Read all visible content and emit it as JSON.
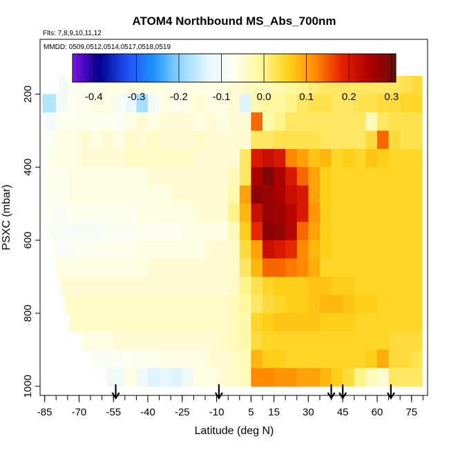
{
  "chart_data": {
    "type": "heatmap",
    "title": "ATOM4 Northbound MS_Abs_700nm",
    "flights_note": "Flts: 7,8,9,10,11,12",
    "dates_note": "MMDD: 0509,0512,0514,0517,0518,0519",
    "xlabel": "Latitude (deg N)",
    "ylabel": "PSXC (mbar)",
    "xlim": [
      -87,
      82
    ],
    "ylim": [
      1025,
      50
    ],
    "y_reversed": true,
    "x_ticks": [
      -85,
      -70,
      -55,
      -40,
      -25,
      -10,
      5,
      15,
      30,
      45,
      60,
      75
    ],
    "x_minor_ticks": [
      -85,
      -80,
      -75,
      -70,
      -65,
      -60,
      -55,
      -50,
      -45,
      -40,
      -35,
      -30,
      -25,
      -20,
      -15,
      -10,
      -5,
      0,
      5,
      10,
      15,
      20,
      25,
      30,
      35,
      40,
      45,
      50,
      55,
      60,
      65,
      70,
      75,
      80
    ],
    "y_ticks": [
      200,
      400,
      600,
      800,
      1000
    ],
    "colorbar": {
      "ticks": [
        -0.4,
        -0.3,
        -0.2,
        -0.1,
        0.0,
        0.1,
        0.2,
        0.3
      ],
      "min": -0.45,
      "max": 0.31,
      "colors": [
        "#7d12e6",
        "#00008c",
        "#1e4ff0",
        "#1e90ff",
        "#8fd8ff",
        "#e6f6ff",
        "#fffff0",
        "#fff799",
        "#ffd21a",
        "#ff8a00",
        "#e62200",
        "#b00000",
        "#6a0a0a"
      ]
    },
    "series": {
      "pressure_levels": [
        175,
        225,
        275,
        325,
        375,
        425,
        475,
        525,
        575,
        625,
        675,
        725,
        775,
        825,
        875,
        925,
        975
      ],
      "level_lat_ranges": [
        [
          -79,
          83
        ],
        [
          -86,
          85
        ],
        [
          -85,
          88
        ],
        [
          -85,
          88
        ],
        [
          -85,
          88
        ],
        [
          -85,
          88
        ],
        [
          -85,
          88
        ],
        [
          -85,
          88
        ],
        [
          -84,
          88
        ],
        [
          -82,
          88
        ],
        [
          -80,
          88
        ],
        [
          -78,
          88
        ],
        [
          -76,
          88
        ],
        [
          -74,
          88
        ],
        [
          -69,
          88
        ],
        [
          -64,
          88
        ],
        [
          -58,
          82
        ]
      ],
      "lat_bins": [
        -87,
        -80,
        -75,
        -70,
        -65,
        -60,
        -55,
        -50,
        -45,
        -40,
        -35,
        -30,
        -25,
        -20,
        -15,
        -10,
        -5,
        0,
        5,
        10,
        15,
        20,
        25,
        30,
        35,
        40,
        45,
        50,
        55,
        60,
        65,
        70,
        75,
        82,
        88
      ],
      "values": [
        [
          -0.14,
          -0.1,
          -0.08,
          -0.07,
          -0.07,
          -0.06,
          -0.06,
          -0.06,
          -0.06,
          -0.06,
          -0.06,
          -0.07,
          -0.06,
          -0.06,
          -0.06,
          -0.06,
          -0.05,
          -0.04,
          -0.03,
          -0.03,
          -0.02,
          -0.01,
          0.0,
          0.01,
          0.02,
          0.02,
          0.02,
          0.02,
          0.02,
          0.02,
          0.02,
          0.03,
          0.04,
          0.04
        ],
        [
          -0.17,
          -0.1,
          -0.07,
          -0.07,
          -0.06,
          -0.06,
          -0.09,
          -0.12,
          -0.18,
          -0.1,
          -0.06,
          -0.07,
          -0.06,
          -0.05,
          -0.06,
          -0.06,
          -0.05,
          -0.14,
          -0.02,
          -0.01,
          -0.01,
          0.0,
          0.02,
          0.03,
          0.03,
          0.02,
          0.02,
          0.03,
          0.03,
          0.04,
          0.04,
          0.05,
          0.05,
          0.05
        ],
        [
          -0.1,
          -0.07,
          -0.07,
          -0.07,
          -0.07,
          -0.07,
          -0.08,
          -0.06,
          -0.05,
          -0.06,
          -0.05,
          -0.05,
          -0.05,
          -0.06,
          -0.05,
          -0.06,
          -0.05,
          -0.05,
          0.14,
          -0.02,
          0.0,
          0.02,
          0.02,
          0.02,
          0.02,
          0.02,
          0.02,
          0.02,
          -0.03,
          0.02,
          0.03,
          0.03,
          0.03,
          0.05
        ],
        [
          -0.08,
          -0.06,
          -0.06,
          -0.05,
          -0.06,
          -0.05,
          -0.06,
          -0.04,
          -0.05,
          -0.04,
          -0.05,
          -0.05,
          -0.05,
          -0.04,
          -0.05,
          -0.05,
          -0.05,
          -0.05,
          0.02,
          0.02,
          0.03,
          0.03,
          0.03,
          0.03,
          0.02,
          0.02,
          0.02,
          0.02,
          0.04,
          0.14,
          0.04,
          0.03,
          0.03,
          0.04
        ],
        [
          -0.07,
          -0.06,
          -0.06,
          -0.05,
          -0.05,
          -0.05,
          -0.05,
          -0.04,
          -0.04,
          -0.04,
          -0.04,
          -0.04,
          -0.04,
          -0.05,
          -0.05,
          -0.05,
          -0.05,
          0.02,
          0.2,
          0.22,
          0.2,
          0.12,
          0.1,
          0.07,
          0.08,
          0.05,
          0.06,
          0.05,
          0.07,
          0.06,
          0.05,
          0.05,
          0.05,
          0.05
        ],
        [
          -0.07,
          -0.07,
          -0.06,
          -0.06,
          -0.06,
          -0.06,
          -0.06,
          -0.06,
          -0.06,
          -0.05,
          -0.05,
          -0.05,
          -0.05,
          -0.05,
          -0.05,
          -0.05,
          -0.03,
          0.02,
          0.25,
          0.29,
          0.25,
          0.2,
          0.14,
          0.1,
          0.06,
          0.05,
          0.05,
          0.05,
          0.05,
          0.05,
          0.05,
          0.05,
          0.05,
          0.05
        ],
        [
          -0.07,
          -0.07,
          -0.06,
          -0.06,
          -0.06,
          -0.06,
          -0.06,
          -0.06,
          -0.06,
          -0.06,
          -0.06,
          -0.05,
          -0.05,
          -0.05,
          -0.05,
          -0.05,
          -0.02,
          0.1,
          0.28,
          0.27,
          0.25,
          0.22,
          0.2,
          0.1,
          0.06,
          0.05,
          0.05,
          0.05,
          0.05,
          0.05,
          0.05,
          0.05,
          0.05,
          0.05
        ],
        [
          -0.08,
          -0.08,
          -0.07,
          -0.07,
          -0.07,
          -0.07,
          -0.07,
          -0.07,
          -0.06,
          -0.06,
          -0.06,
          -0.06,
          -0.06,
          -0.05,
          -0.05,
          -0.05,
          0.0,
          0.08,
          0.22,
          0.27,
          0.26,
          0.24,
          0.2,
          0.11,
          0.06,
          0.05,
          0.05,
          0.05,
          0.05,
          0.05,
          0.05,
          0.05,
          0.05,
          0.05
        ],
        [
          -0.09,
          -0.09,
          -0.09,
          -0.09,
          -0.09,
          -0.08,
          -0.08,
          -0.08,
          -0.07,
          -0.07,
          -0.07,
          -0.07,
          -0.06,
          -0.06,
          -0.06,
          -0.06,
          -0.03,
          0.06,
          0.18,
          0.28,
          0.27,
          0.24,
          0.14,
          0.1,
          0.06,
          0.05,
          0.05,
          0.05,
          0.05,
          0.05,
          0.05,
          0.05,
          0.05,
          0.05
        ],
        [
          -0.08,
          -0.08,
          -0.08,
          -0.07,
          -0.07,
          -0.07,
          -0.07,
          -0.07,
          -0.06,
          -0.06,
          -0.06,
          -0.06,
          -0.06,
          -0.06,
          -0.05,
          -0.05,
          -0.04,
          0.04,
          0.1,
          0.22,
          0.2,
          0.18,
          0.12,
          0.08,
          0.06,
          0.05,
          0.05,
          0.05,
          0.05,
          0.05,
          0.05,
          0.05,
          0.05,
          0.05
        ],
        [
          -0.06,
          -0.06,
          -0.06,
          -0.06,
          -0.06,
          -0.06,
          -0.06,
          -0.06,
          -0.06,
          -0.05,
          -0.05,
          -0.05,
          -0.05,
          -0.05,
          -0.05,
          -0.05,
          -0.04,
          0.02,
          0.08,
          0.14,
          0.14,
          0.13,
          0.12,
          0.09,
          0.05,
          0.05,
          0.05,
          0.05,
          0.05,
          0.05,
          0.05,
          0.05,
          0.05,
          0.05
        ],
        [
          -0.05,
          -0.05,
          -0.05,
          -0.05,
          -0.05,
          -0.05,
          -0.05,
          -0.05,
          -0.05,
          -0.05,
          -0.05,
          -0.05,
          -0.05,
          -0.05,
          -0.05,
          -0.05,
          -0.04,
          0.0,
          0.03,
          0.05,
          0.06,
          0.06,
          0.06,
          0.07,
          0.07,
          0.06,
          0.06,
          0.05,
          0.05,
          0.05,
          0.05,
          0.05,
          0.05,
          0.05
        ],
        [
          -0.04,
          -0.04,
          -0.04,
          -0.04,
          -0.04,
          -0.04,
          -0.04,
          -0.04,
          -0.04,
          -0.04,
          -0.04,
          -0.04,
          -0.04,
          -0.04,
          -0.04,
          -0.04,
          -0.03,
          -0.01,
          0.02,
          0.04,
          0.05,
          0.06,
          0.06,
          0.07,
          0.08,
          0.08,
          0.07,
          0.06,
          0.06,
          0.05,
          0.05,
          0.05,
          0.05,
          0.05
        ],
        [
          -0.04,
          -0.04,
          -0.04,
          -0.04,
          -0.04,
          -0.04,
          -0.04,
          -0.04,
          -0.04,
          -0.04,
          -0.04,
          -0.04,
          -0.04,
          -0.04,
          -0.04,
          -0.04,
          -0.03,
          -0.02,
          0.05,
          0.06,
          0.07,
          0.07,
          0.07,
          0.07,
          0.06,
          0.06,
          0.06,
          0.05,
          0.05,
          0.05,
          0.05,
          0.05,
          0.05,
          0.05
        ],
        [
          -0.06,
          -0.06,
          -0.06,
          -0.06,
          -0.06,
          -0.06,
          -0.05,
          -0.05,
          -0.05,
          -0.05,
          -0.05,
          -0.05,
          -0.05,
          -0.05,
          -0.05,
          -0.04,
          -0.03,
          -0.02,
          0.04,
          0.05,
          0.05,
          0.05,
          0.05,
          0.05,
          0.05,
          0.05,
          0.05,
          0.05,
          0.05,
          0.05,
          0.04,
          0.04,
          0.04,
          0.04
        ],
        [
          -0.08,
          -0.08,
          -0.08,
          -0.08,
          -0.08,
          -0.08,
          -0.08,
          -0.07,
          -0.07,
          -0.07,
          -0.06,
          -0.06,
          -0.06,
          -0.06,
          -0.05,
          -0.05,
          -0.04,
          -0.03,
          0.08,
          0.06,
          0.06,
          0.05,
          0.05,
          0.05,
          0.05,
          0.05,
          0.05,
          0.05,
          0.06,
          0.09,
          0.04,
          0.04,
          0.03,
          0.03
        ],
        [
          -0.1,
          -0.1,
          -0.1,
          -0.1,
          -0.1,
          -0.1,
          -0.1,
          -0.06,
          -0.1,
          -0.14,
          -0.13,
          -0.14,
          -0.1,
          -0.06,
          -0.06,
          -0.05,
          -0.04,
          -0.03,
          0.12,
          0.12,
          0.11,
          0.11,
          0.1,
          0.1,
          0.08,
          0.06,
          0.04,
          0.0,
          -0.03,
          -0.05,
          0.02,
          0.02,
          0.02,
          0.02
        ]
      ]
    },
    "flight_markers": [
      -54,
      -9,
      40,
      45,
      66
    ]
  }
}
